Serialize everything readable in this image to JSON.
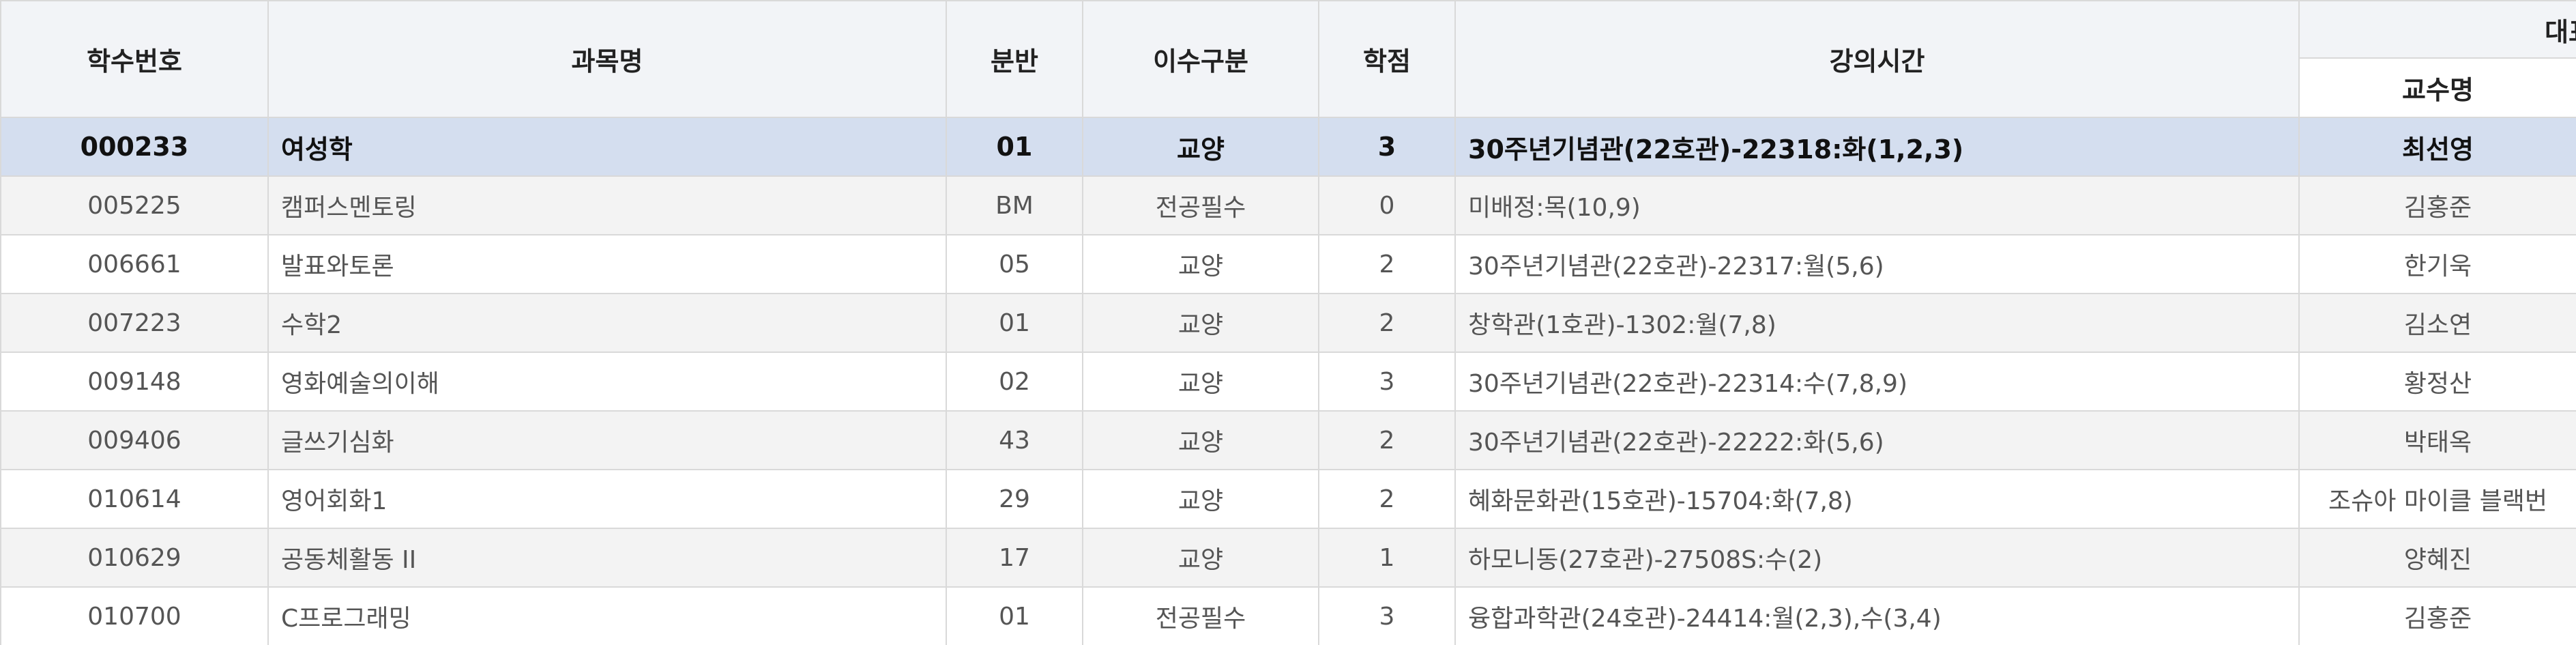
{
  "header": {
    "col_id": "학수번호",
    "col_name": "과목명",
    "col_section": "분반",
    "col_type": "이수구분",
    "col_credit": "학점",
    "col_time": "강의시간",
    "col_group": "대표",
    "col_prof": "교수명"
  },
  "rows": [
    {
      "id": "000233",
      "name": "여성학",
      "section": "01",
      "type": "교양",
      "credit": "3",
      "time": "30주년기념관(22호관)-22318:화(1,2,3)",
      "prof": "최선영",
      "selected": true
    },
    {
      "id": "005225",
      "name": "캠퍼스멘토링",
      "section": "BM",
      "type": "전공필수",
      "credit": "0",
      "time": "미배정:목(10,9)",
      "prof": "김홍준"
    },
    {
      "id": "006661",
      "name": "발표와토론",
      "section": "05",
      "type": "교양",
      "credit": "2",
      "time": "30주년기념관(22호관)-22317:월(5,6)",
      "prof": "한기욱"
    },
    {
      "id": "007223",
      "name": "수학2",
      "section": "01",
      "type": "교양",
      "credit": "2",
      "time": "창학관(1호관)-1302:월(7,8)",
      "prof": "김소연"
    },
    {
      "id": "009148",
      "name": "영화예술의이해",
      "section": "02",
      "type": "교양",
      "credit": "3",
      "time": "30주년기념관(22호관)-22314:수(7,8,9)",
      "prof": "황정산"
    },
    {
      "id": "009406",
      "name": "글쓰기심화",
      "section": "43",
      "type": "교양",
      "credit": "2",
      "time": "30주년기념관(22호관)-22222:화(5,6)",
      "prof": "박태옥"
    },
    {
      "id": "010614",
      "name": "영어회화1",
      "section": "29",
      "type": "교양",
      "credit": "2",
      "time": "혜화문화관(15호관)-15704:화(7,8)",
      "prof": "조슈아 마이클 블랙번"
    },
    {
      "id": "010629",
      "name": "공동체활동 II",
      "section": "17",
      "type": "교양",
      "credit": "1",
      "time": "하모니동(27호관)-27508S:수(2)",
      "prof": "양혜진"
    },
    {
      "id": "010700",
      "name": "C프로그래밍",
      "section": "01",
      "type": "전공필수",
      "credit": "3",
      "time": "융합과학관(24호관)-24414:월(2,3),수(3,4)",
      "prof": "김홍준"
    }
  ]
}
